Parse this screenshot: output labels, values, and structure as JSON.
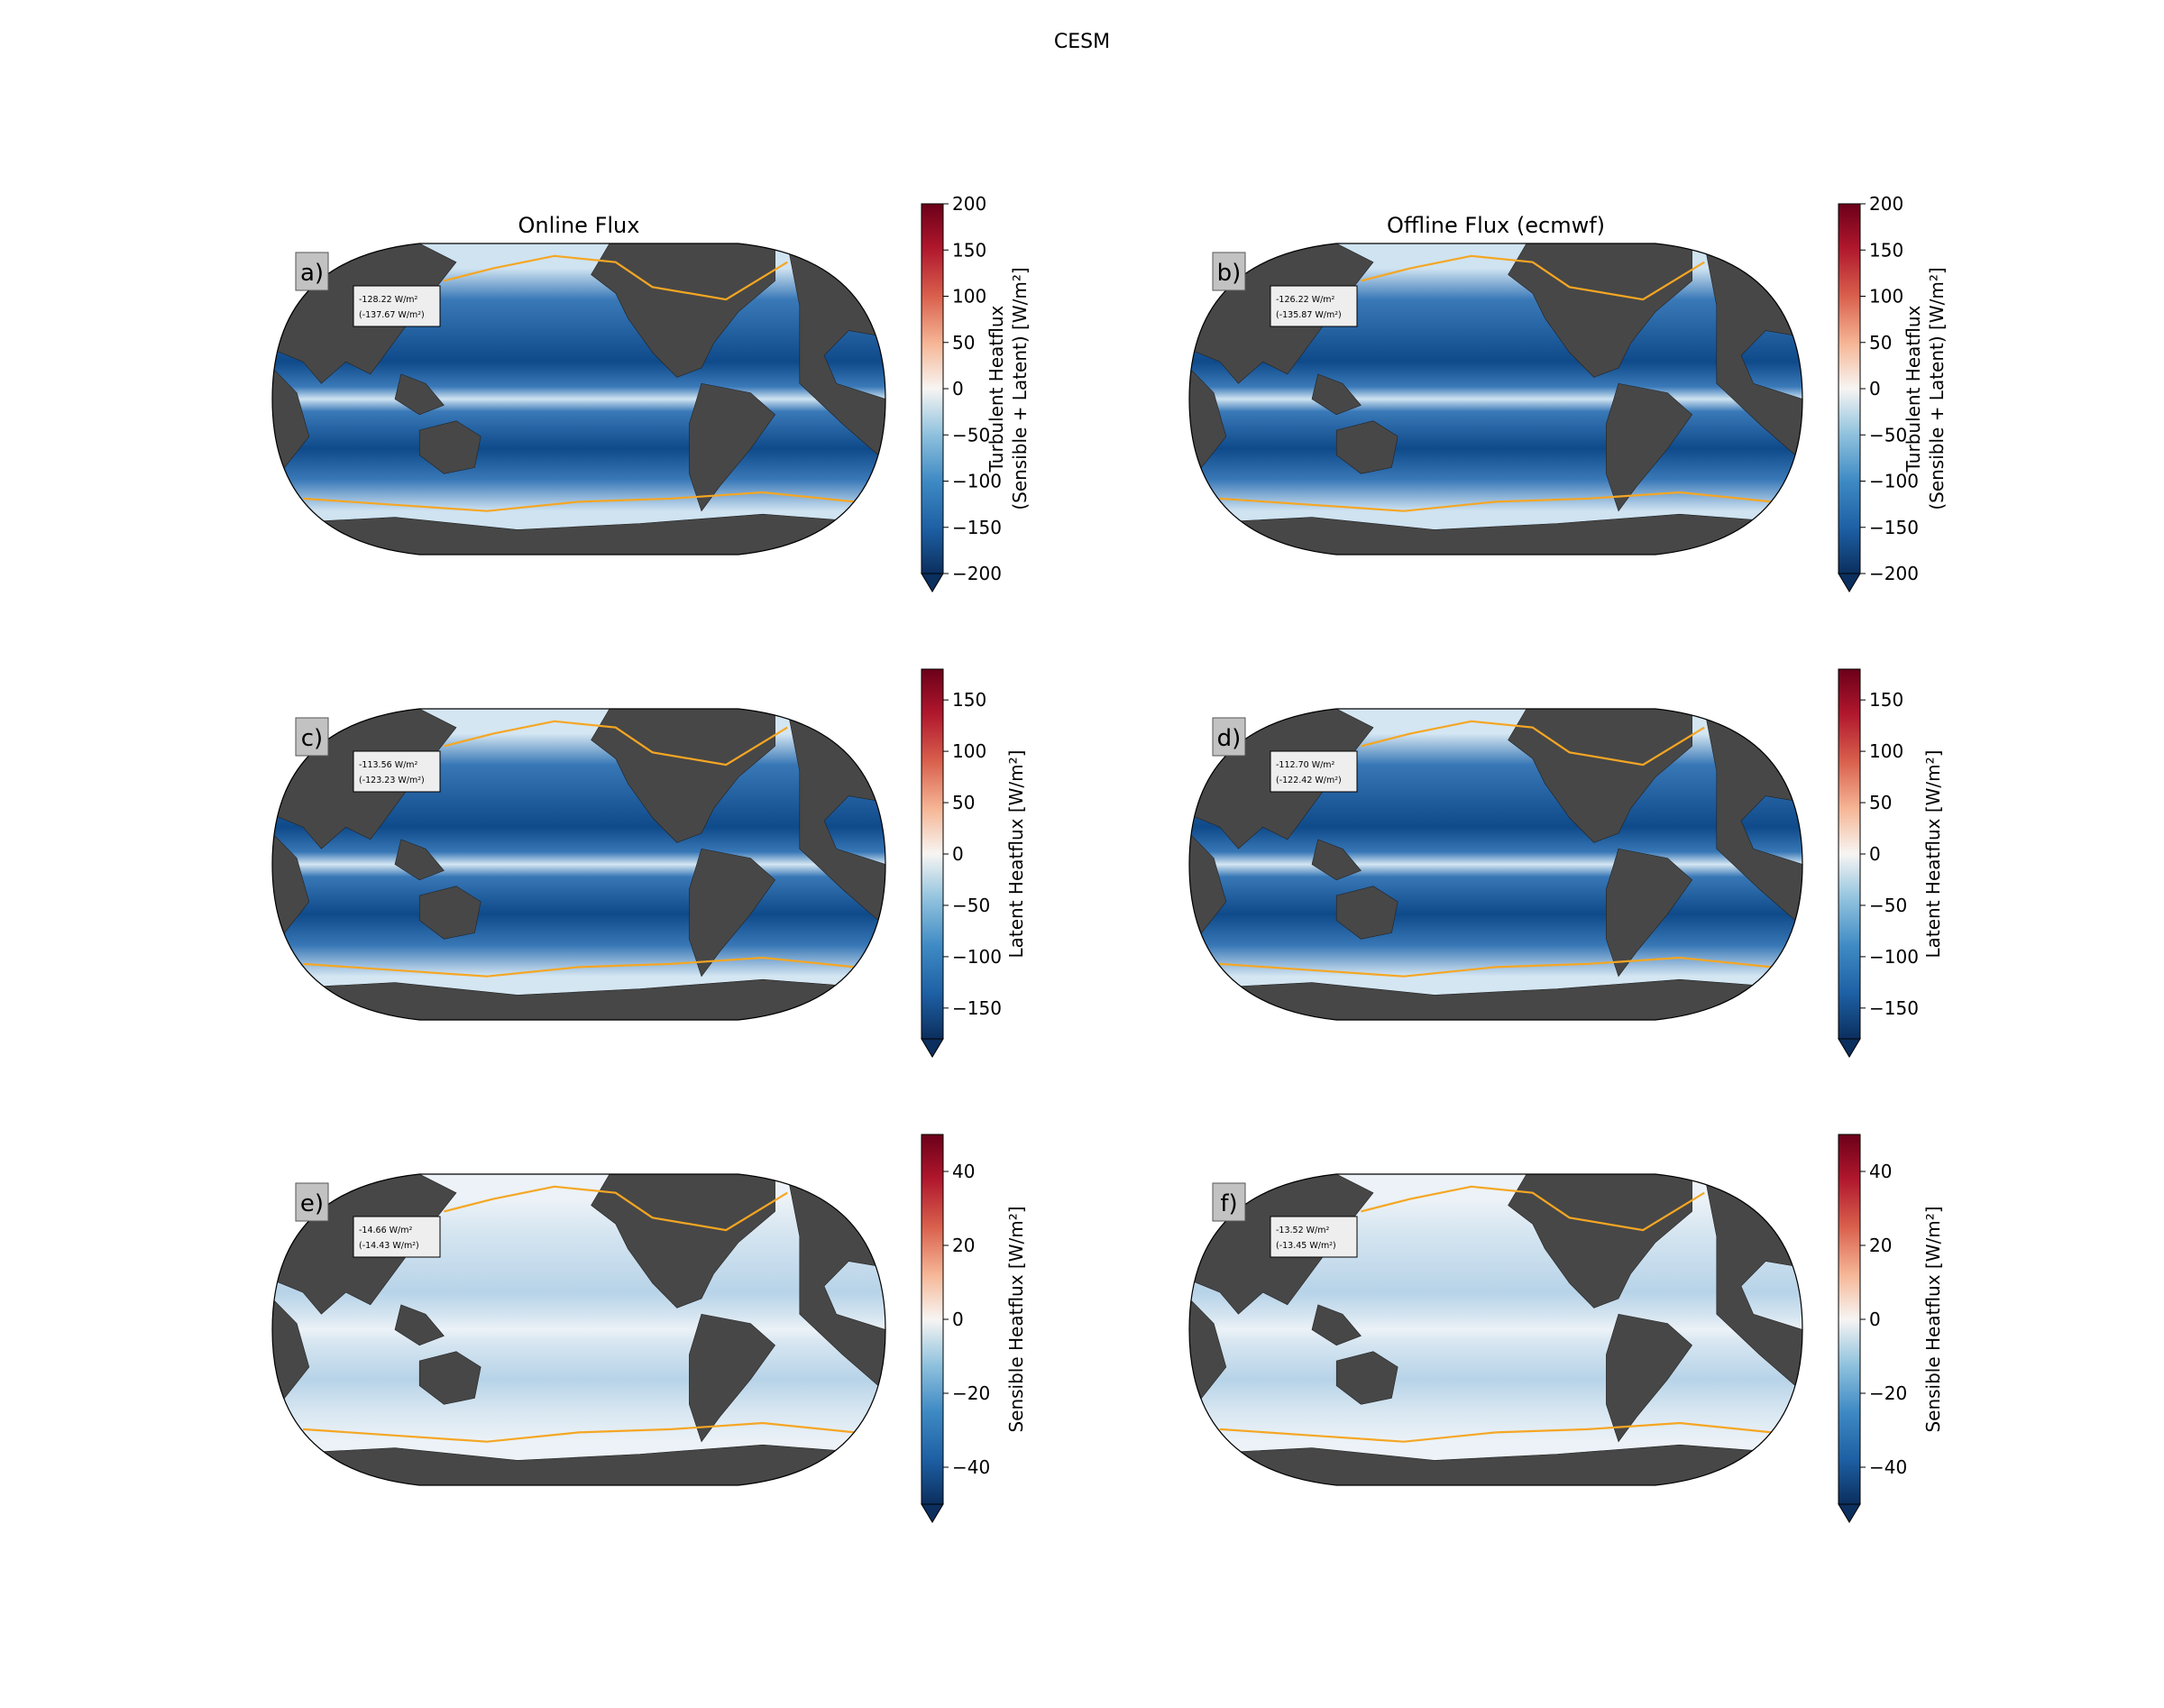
{
  "figure": {
    "suptitle": "CESM",
    "column_titles": [
      "Online Flux",
      "Offline Flux (ecmwf)"
    ]
  },
  "colors": {
    "land": "#474747",
    "ice_edge_contour": "#f5a623",
    "colormap": "RdBu_r",
    "neg_extreme": "#0b2f5e",
    "pos_extreme": "#6b0019"
  },
  "chart_data": [
    {
      "type": "heatmap",
      "map_projection": "robinson",
      "panel_label": "a)",
      "title": "Online Flux",
      "stats_mean": "-128.22",
      "stats_second": "(-137.67",
      "stats_unit": "W/m²",
      "colorbar": {
        "label_line1": "Turbulent Heatflux",
        "label_line2": "(Sensible + Latent) [W/m²]",
        "vmin": -200,
        "vmax": 200,
        "ticks": [
          "200",
          "150",
          "100",
          "50",
          "0",
          "−50",
          "−100",
          "−150",
          "−200"
        ],
        "tick_values": [
          200,
          150,
          100,
          50,
          0,
          -50,
          -100,
          -150,
          -200
        ],
        "extend": "min"
      }
    },
    {
      "type": "heatmap",
      "map_projection": "robinson",
      "panel_label": "b)",
      "title": "Offline Flux (ecmwf)",
      "stats_mean": "-126.22",
      "stats_second": "(-135.87",
      "stats_unit": "W/m²",
      "colorbar": {
        "label_line1": "Turbulent Heatflux",
        "label_line2": "(Sensible + Latent) [W/m²]",
        "vmin": -200,
        "vmax": 200,
        "ticks": [
          "200",
          "150",
          "100",
          "50",
          "0",
          "−50",
          "−100",
          "−150",
          "−200"
        ],
        "tick_values": [
          200,
          150,
          100,
          50,
          0,
          -50,
          -100,
          -150,
          -200
        ],
        "extend": "min"
      }
    },
    {
      "type": "heatmap",
      "map_projection": "robinson",
      "panel_label": "c)",
      "title": "",
      "stats_mean": "-113.56",
      "stats_second": "(-123.23",
      "stats_unit": "W/m²",
      "colorbar": {
        "label_line1": "Latent Heatflux [W/m²]",
        "label_line2": "",
        "vmin": -180,
        "vmax": 180,
        "ticks": [
          "150",
          "100",
          "50",
          "0",
          "−50",
          "−100",
          "−150"
        ],
        "tick_values": [
          150,
          100,
          50,
          0,
          -50,
          -100,
          -150
        ],
        "extend": "min"
      }
    },
    {
      "type": "heatmap",
      "map_projection": "robinson",
      "panel_label": "d)",
      "title": "",
      "stats_mean": "-112.70",
      "stats_second": "(-122.42",
      "stats_unit": "W/m²",
      "colorbar": {
        "label_line1": "Latent Heatflux [W/m²]",
        "label_line2": "",
        "vmin": -180,
        "vmax": 180,
        "ticks": [
          "150",
          "100",
          "50",
          "0",
          "−50",
          "−100",
          "−150"
        ],
        "tick_values": [
          150,
          100,
          50,
          0,
          -50,
          -100,
          -150
        ],
        "extend": "min"
      }
    },
    {
      "type": "heatmap",
      "map_projection": "robinson",
      "panel_label": "e)",
      "title": "",
      "stats_mean": "-14.66",
      "stats_second": "(-14.43",
      "stats_unit": "W/m²",
      "colorbar": {
        "label_line1": "Sensible Heatflux [W/m²]",
        "label_line2": "",
        "vmin": -50,
        "vmax": 50,
        "ticks": [
          "40",
          "20",
          "0",
          "−20",
          "−40"
        ],
        "tick_values": [
          40,
          20,
          0,
          -20,
          -40
        ],
        "extend": "min"
      }
    },
    {
      "type": "heatmap",
      "map_projection": "robinson",
      "panel_label": "f)",
      "title": "",
      "stats_mean": "-13.52",
      "stats_second": "(-13.45",
      "stats_unit": "W/m²",
      "colorbar": {
        "label_line1": "Sensible Heatflux [W/m²]",
        "label_line2": "",
        "vmin": -50,
        "vmax": 50,
        "ticks": [
          "40",
          "20",
          "0",
          "−20",
          "−40"
        ],
        "tick_values": [
          40,
          20,
          0,
          -20,
          -40
        ],
        "extend": "min"
      }
    }
  ]
}
